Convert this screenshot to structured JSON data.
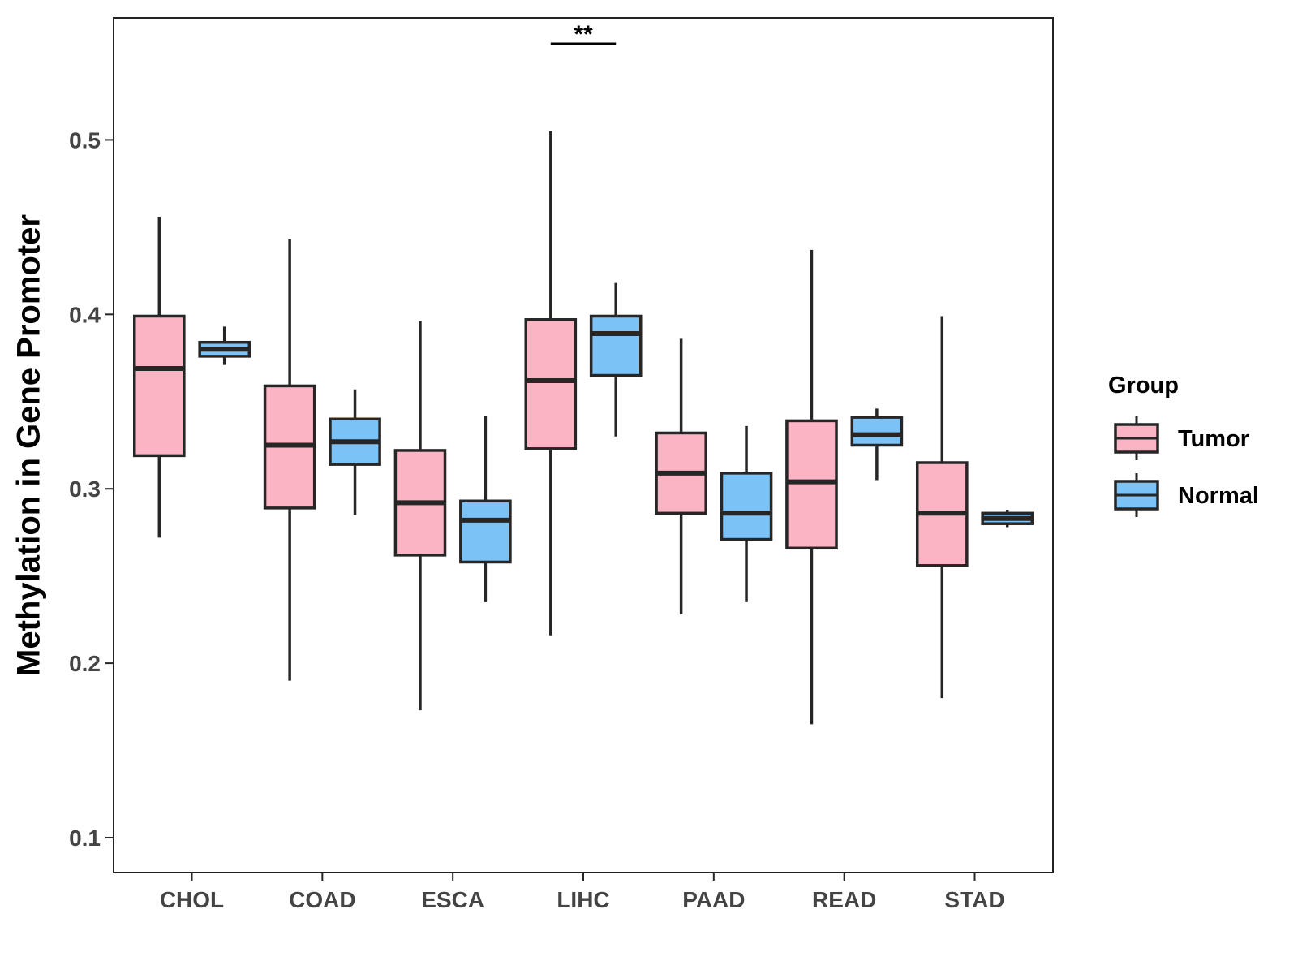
{
  "chart_data": {
    "type": "boxplot",
    "title": "",
    "xlabel": "",
    "ylabel": "Methylation in Gene Promoter",
    "ylim": [
      0.08,
      0.57
    ],
    "yticks": [
      0.1,
      0.2,
      0.3,
      0.4,
      0.5
    ],
    "ytick_labels": [
      "0.1",
      "0.2",
      "0.3",
      "0.4",
      "0.5"
    ],
    "categories": [
      "CHOL",
      "COAD",
      "ESCA",
      "LIHC",
      "PAAD",
      "READ",
      "STAD"
    ],
    "legend": {
      "title": "Group",
      "position": "right",
      "entries": [
        {
          "name": "Tumor",
          "color": "#FBB4C4"
        },
        {
          "name": "Normal",
          "color": "#7BC2F6"
        }
      ]
    },
    "series": [
      {
        "name": "Tumor",
        "color": "#FBB4C4",
        "boxes": [
          {
            "category": "CHOL",
            "min": 0.272,
            "q1": 0.319,
            "median": 0.369,
            "q3": 0.399,
            "max": 0.456
          },
          {
            "category": "COAD",
            "min": 0.19,
            "q1": 0.289,
            "median": 0.325,
            "q3": 0.359,
            "max": 0.443
          },
          {
            "category": "ESCA",
            "min": 0.173,
            "q1": 0.262,
            "median": 0.292,
            "q3": 0.322,
            "max": 0.396
          },
          {
            "category": "LIHC",
            "min": 0.216,
            "q1": 0.323,
            "median": 0.362,
            "q3": 0.397,
            "max": 0.505
          },
          {
            "category": "PAAD",
            "min": 0.228,
            "q1": 0.286,
            "median": 0.309,
            "q3": 0.332,
            "max": 0.386
          },
          {
            "category": "READ",
            "min": 0.165,
            "q1": 0.266,
            "median": 0.304,
            "q3": 0.339,
            "max": 0.437
          },
          {
            "category": "STAD",
            "min": 0.18,
            "q1": 0.256,
            "median": 0.286,
            "q3": 0.315,
            "max": 0.399
          }
        ]
      },
      {
        "name": "Normal",
        "color": "#7BC2F6",
        "boxes": [
          {
            "category": "CHOL",
            "min": 0.371,
            "q1": 0.376,
            "median": 0.38,
            "q3": 0.384,
            "max": 0.393
          },
          {
            "category": "COAD",
            "min": 0.285,
            "q1": 0.314,
            "median": 0.327,
            "q3": 0.34,
            "max": 0.357
          },
          {
            "category": "ESCA",
            "min": 0.235,
            "q1": 0.258,
            "median": 0.282,
            "q3": 0.293,
            "max": 0.342
          },
          {
            "category": "LIHC",
            "min": 0.33,
            "q1": 0.365,
            "median": 0.389,
            "q3": 0.399,
            "max": 0.418
          },
          {
            "category": "PAAD",
            "min": 0.235,
            "q1": 0.271,
            "median": 0.286,
            "q3": 0.309,
            "max": 0.336
          },
          {
            "category": "READ",
            "min": 0.305,
            "q1": 0.325,
            "median": 0.331,
            "q3": 0.341,
            "max": 0.346
          },
          {
            "category": "STAD",
            "min": 0.278,
            "q1": 0.28,
            "median": 0.283,
            "q3": 0.286,
            "max": 0.288
          }
        ]
      }
    ],
    "annotations": [
      {
        "category": "LIHC",
        "label": "**",
        "y": 0.555
      }
    ]
  }
}
